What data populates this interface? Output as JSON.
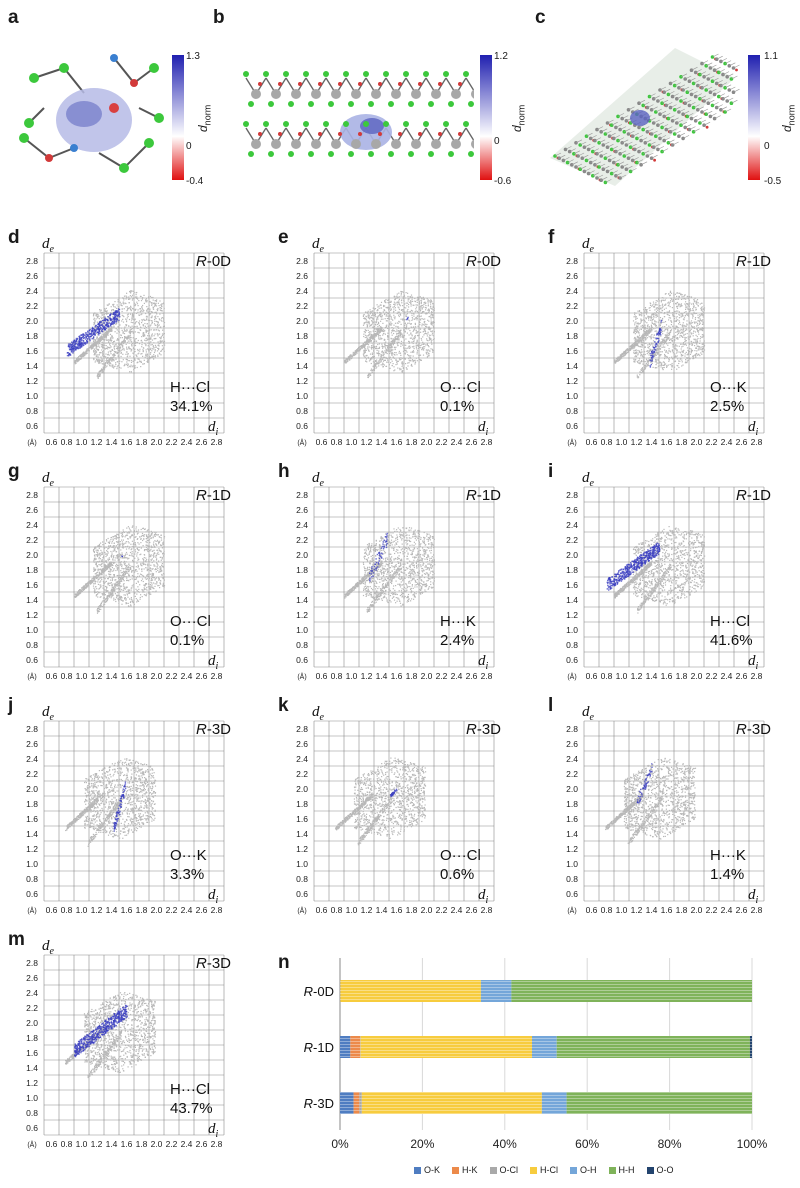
{
  "panel_letters": [
    "a",
    "b",
    "c",
    "d",
    "e",
    "f",
    "g",
    "h",
    "i",
    "j",
    "k",
    "l",
    "m",
    "n"
  ],
  "colorbars": [
    {
      "max": "1.3",
      "mid": "0",
      "min": "-0.4"
    },
    {
      "max": "1.2",
      "mid": "0",
      "min": "-0.6"
    },
    {
      "max": "1.1",
      "mid": "0",
      "min": "-0.5"
    }
  ],
  "dnorm_label": {
    "d": "d",
    "sub": "norm"
  },
  "fingerprint_axes": {
    "y_label": "d",
    "y_sub": "e",
    "x_label": "d",
    "x_sub": "i",
    "unit": "(Å)",
    "y_ticks": [
      "2.8",
      "2.6",
      "2.4",
      "2.2",
      "2.0",
      "1.8",
      "1.6",
      "1.4",
      "1.2",
      "1.0",
      "0.8",
      "0.6"
    ],
    "x_ticks": [
      "0.6",
      "0.8",
      "1.0",
      "1.2",
      "1.4",
      "1.6",
      "1.8",
      "2.0",
      "2.2",
      "2.4",
      "2.6",
      "2.8"
    ]
  },
  "fingerprints": [
    {
      "letter": "d",
      "phase_italic": "R",
      "phase_rest": "-0D",
      "contact_a": "H",
      "contact_b": "Cl",
      "percent": "34.1%"
    },
    {
      "letter": "e",
      "phase_italic": "R",
      "phase_rest": "-0D",
      "contact_a": "O",
      "contact_b": "Cl",
      "percent": "0.1%"
    },
    {
      "letter": "f",
      "phase_italic": "R",
      "phase_rest": "-1D",
      "contact_a": "O",
      "contact_b": "K",
      "percent": "2.5%"
    },
    {
      "letter": "g",
      "phase_italic": "R",
      "phase_rest": "-1D",
      "contact_a": "O",
      "contact_b": "Cl",
      "percent": "0.1%"
    },
    {
      "letter": "h",
      "phase_italic": "R",
      "phase_rest": "-1D",
      "contact_a": "H",
      "contact_b": "K",
      "percent": "2.4%"
    },
    {
      "letter": "i",
      "phase_italic": "R",
      "phase_rest": "-1D",
      "contact_a": "H",
      "contact_b": "Cl",
      "percent": "41.6%"
    },
    {
      "letter": "j",
      "phase_italic": "R",
      "phase_rest": "-3D",
      "contact_a": "O",
      "contact_b": "K",
      "percent": "3.3%"
    },
    {
      "letter": "k",
      "phase_italic": "R",
      "phase_rest": "-3D",
      "contact_a": "O",
      "contact_b": "Cl",
      "percent": "0.6%"
    },
    {
      "letter": "l",
      "phase_italic": "R",
      "phase_rest": "-3D",
      "contact_a": "H",
      "contact_b": "K",
      "percent": "1.4%"
    },
    {
      "letter": "m",
      "phase_italic": "R",
      "phase_rest": "-3D",
      "contact_a": "H",
      "contact_b": "Cl",
      "percent": "43.7%"
    }
  ],
  "contact_dots": "···",
  "colors": {
    "fingerprint_gray": "#b8b8b8",
    "fingerprint_blue": "#3a3ec0",
    "grid": "#8a8a8a",
    "O-K": "#4f7dc1",
    "H-K": "#ec8a4a",
    "O-Cl": "#a9a9a9",
    "H-Cl": "#f7cc3e",
    "O-H": "#74a6d9",
    "H-H": "#7fb35a",
    "O-O": "#23446e"
  },
  "chart_data": {
    "type": "bar",
    "orientation": "horizontal",
    "stacked": true,
    "categories": [
      {
        "italic": "R",
        "rest": "-0D"
      },
      {
        "italic": "R",
        "rest": "-1D"
      },
      {
        "italic": "R",
        "rest": "-3D"
      }
    ],
    "series": [
      {
        "name": "O-K",
        "values": [
          0,
          2.5,
          3.3
        ]
      },
      {
        "name": "H-K",
        "values": [
          0,
          2.4,
          1.4
        ]
      },
      {
        "name": "O-Cl",
        "values": [
          0.1,
          0.1,
          0.6
        ]
      },
      {
        "name": "H-Cl",
        "values": [
          34.1,
          41.6,
          43.7
        ]
      },
      {
        "name": "O-H",
        "values": [
          7.4,
          6.0,
          6.0
        ]
      },
      {
        "name": "H-H",
        "values": [
          58.4,
          46.9,
          45.0
        ]
      },
      {
        "name": "O-O",
        "values": [
          0,
          0.5,
          0
        ]
      }
    ],
    "x_ticks": [
      "0%",
      "20%",
      "40%",
      "60%",
      "80%",
      "100%"
    ],
    "xlim": [
      0,
      100
    ],
    "grid": "vertical",
    "legend": "bottom"
  }
}
